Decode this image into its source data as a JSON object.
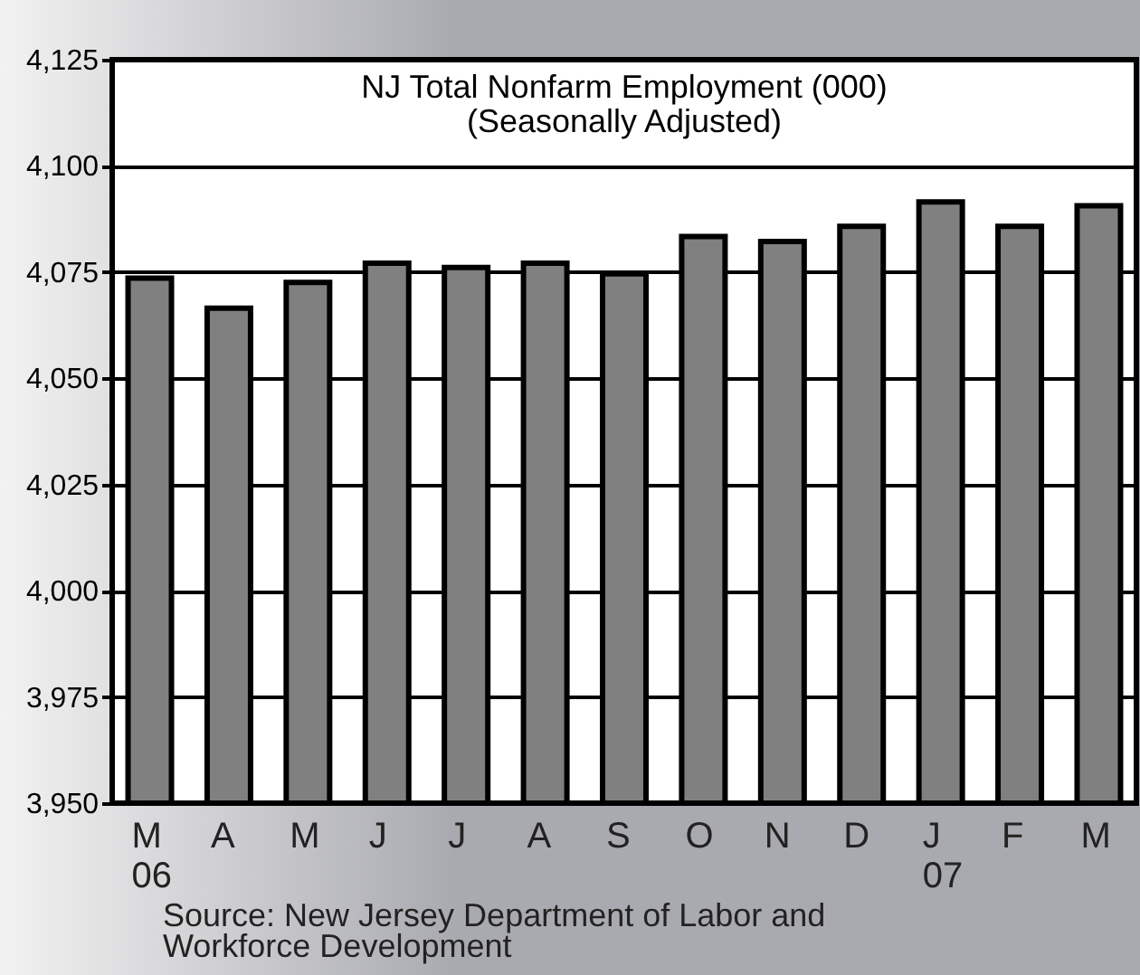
{
  "chart_data": {
    "type": "bar",
    "title": "NJ Total Nonfarm Employment (000)",
    "subtitle": "(Seasonally Adjusted)",
    "categories": [
      "M\n06",
      "A",
      "M",
      "J",
      "J",
      "A",
      "S",
      "O",
      "N",
      "D",
      "J\n07",
      "F",
      "M"
    ],
    "values": [
      4073.6,
      4066.5,
      4072.6,
      4077.1,
      4076.1,
      4077.1,
      4074.6,
      4083.4,
      4082.2,
      4085.8,
      4091.5,
      4085.8,
      4090.6
    ],
    "color": "#808080",
    "ylim": [
      3950,
      4125
    ],
    "yticks": [
      {
        "value": 3950,
        "label": "3,950"
      },
      {
        "value": 3975,
        "label": "3,975"
      },
      {
        "value": 4000,
        "label": "4,000"
      },
      {
        "value": 4025,
        "label": "4,025"
      },
      {
        "value": 4050,
        "label": "4,050"
      },
      {
        "value": 4075,
        "label": "4,075"
      },
      {
        "value": 4100,
        "label": "4,100"
      },
      {
        "value": 4125,
        "label": "4,125"
      }
    ],
    "grid": "y",
    "annotations": [
      "Source:  New Jersey Department of Labor and Workforce Development"
    ]
  }
}
